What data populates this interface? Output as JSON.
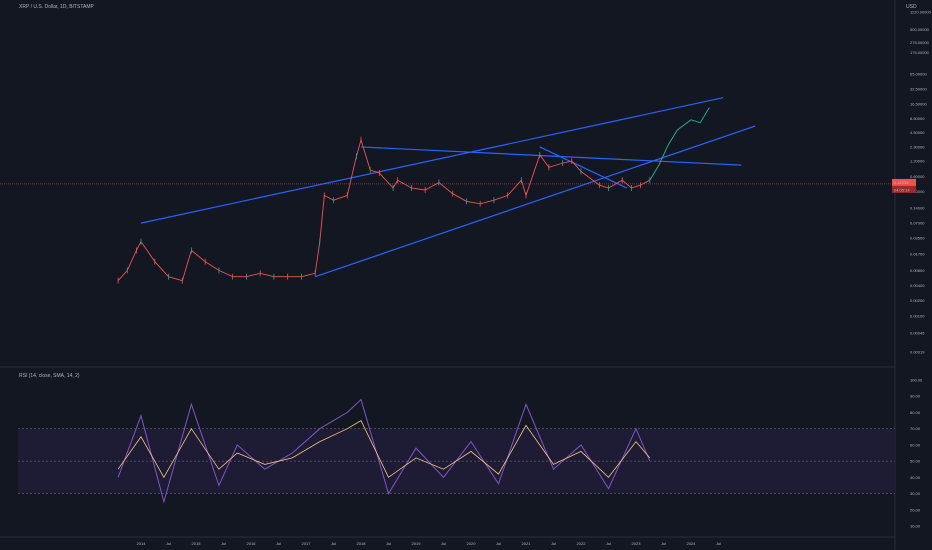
{
  "header": {
    "symbol_title": "XRP / U.S. Dollar, 1D, BITSTAMP",
    "currency": "USD",
    "rsi_title": "RSI (14, close, SMA, 14, 2)"
  },
  "colors": {
    "background": "#131722",
    "trendline": "#2962ff",
    "candle_up": "#26a69a",
    "candle_down": "#ef5350",
    "projection": "#26a69a",
    "rsi_line": "#7e57c2",
    "rsi_ma": "#f7c77d",
    "rsi_band": "#1e1b35"
  },
  "chart_data": [
    {
      "type": "line",
      "scale": "log",
      "x_axis_labels": [
        "2014",
        "Jul",
        "2015",
        "Jul",
        "2016",
        "Jul",
        "2017",
        "Jul",
        "2018",
        "Jul",
        "2019",
        "Jul",
        "2020",
        "Jul",
        "2021",
        "Jul",
        "2022",
        "Jul",
        "2023",
        "Jul",
        "2024",
        "Jul"
      ],
      "y_axis_labels": [
        "1120.00000",
        "500.00000",
        "275.00000",
        "175.00000",
        "65.00000",
        "32.50000",
        "16.50000",
        "8.50000",
        "4.50000",
        "2.30000",
        "1.20000",
        "0.60000",
        "0.30000",
        "0.14000",
        "0.07000",
        "0.03500",
        "0.01700",
        "0.00800",
        "0.00400",
        "0.00200",
        "0.00100",
        "0.00045",
        "0.00019"
      ],
      "last_price_label": "0.42238",
      "countdown_label": "04:05:14",
      "price_series": {
        "name": "XRP / U.S. Dollar",
        "x": [
          "2013-08",
          "2013-10",
          "2013-12",
          "2014-01",
          "2014-04",
          "2014-07",
          "2014-10",
          "2014-12",
          "2015-03",
          "2015-06",
          "2015-09",
          "2015-12",
          "2016-03",
          "2016-06",
          "2016-09",
          "2016-12",
          "2017-03",
          "2017-04",
          "2017-05",
          "2017-07",
          "2017-10",
          "2017-12",
          "2018-01",
          "2018-03",
          "2018-05",
          "2018-08",
          "2018-09",
          "2018-12",
          "2019-03",
          "2019-06",
          "2019-09",
          "2019-12",
          "2020-03",
          "2020-06",
          "2020-09",
          "2020-12",
          "2021-01",
          "2021-04",
          "2021-06",
          "2021-09",
          "2021-11",
          "2022-01",
          "2022-05",
          "2022-07",
          "2022-10",
          "2022-12",
          "2023-02",
          "2023-04"
        ],
        "y": [
          0.005,
          0.008,
          0.02,
          0.03,
          0.012,
          0.006,
          0.005,
          0.02,
          0.012,
          0.008,
          0.006,
          0.006,
          0.007,
          0.006,
          0.006,
          0.006,
          0.007,
          0.03,
          0.25,
          0.2,
          0.25,
          1.5,
          3.2,
          0.8,
          0.7,
          0.35,
          0.5,
          0.35,
          0.32,
          0.45,
          0.27,
          0.19,
          0.17,
          0.2,
          0.25,
          0.5,
          0.25,
          1.6,
          0.9,
          1.1,
          1.2,
          0.75,
          0.4,
          0.35,
          0.5,
          0.35,
          0.4,
          0.5
        ]
      },
      "projection_series": {
        "x": [
          "2023-04",
          "2023-06",
          "2023-08",
          "2023-10",
          "2024-01",
          "2024-03",
          "2024-05"
        ],
        "y": [
          0.5,
          1.0,
          2.5,
          5.0,
          8.0,
          7.0,
          14.0
        ]
      },
      "trendlines": [
        {
          "x1": "2014-01",
          "y1": 0.07,
          "x2": "2024-08",
          "y2": 22.0
        },
        {
          "x1": "2017-03",
          "y1": 0.006,
          "x2": "2025-03",
          "y2": 6.0
        },
        {
          "x1": "2018-01",
          "y1": 2.3,
          "x2": "2024-12",
          "y2": 1.0
        },
        {
          "x1": "2021-04",
          "y1": 2.3,
          "x2": "2022-11",
          "y2": 0.35
        }
      ]
    },
    {
      "type": "line",
      "title": "RSI (14, close, SMA, 14, 2)",
      "y_axis_labels": [
        "100.00",
        "90.00",
        "80.00",
        "70.00",
        "60.00",
        "50.00",
        "40.00",
        "30.00",
        "20.00",
        "10.00"
      ],
      "ylim": [
        10,
        100
      ],
      "band": [
        30,
        70
      ],
      "middle": 50,
      "series": [
        {
          "name": "RSI",
          "x": [
            "2013-08",
            "2014-01",
            "2014-06",
            "2014-12",
            "2015-06",
            "2015-10",
            "2016-04",
            "2016-10",
            "2017-04",
            "2017-10",
            "2018-01",
            "2018-07",
            "2019-01",
            "2019-07",
            "2020-01",
            "2020-07",
            "2021-01",
            "2021-07",
            "2022-01",
            "2022-07",
            "2023-01",
            "2023-04"
          ],
          "y": [
            40,
            78,
            25,
            85,
            35,
            60,
            45,
            55,
            70,
            80,
            88,
            30,
            58,
            40,
            62,
            36,
            85,
            45,
            60,
            33,
            70,
            50
          ]
        },
        {
          "name": "RSI-based MA",
          "x": [
            "2013-08",
            "2014-01",
            "2014-06",
            "2014-12",
            "2015-06",
            "2015-10",
            "2016-04",
            "2016-10",
            "2017-04",
            "2017-10",
            "2018-01",
            "2018-07",
            "2019-01",
            "2019-07",
            "2020-01",
            "2020-07",
            "2021-01",
            "2021-07",
            "2022-01",
            "2022-07",
            "2023-01",
            "2023-04"
          ],
          "y": [
            45,
            65,
            40,
            70,
            45,
            55,
            48,
            52,
            62,
            70,
            75,
            40,
            52,
            45,
            56,
            42,
            72,
            48,
            56,
            40,
            62,
            52
          ]
        }
      ]
    }
  ]
}
